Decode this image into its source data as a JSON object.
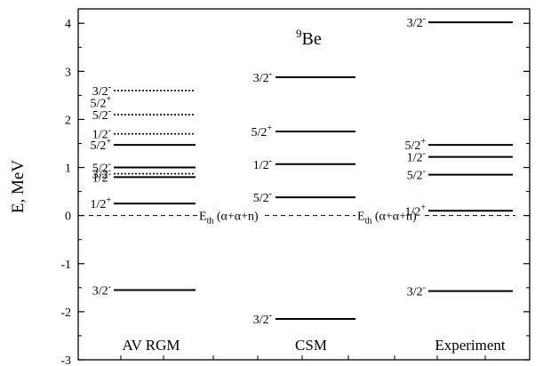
{
  "chart_data": {
    "type": "level_diagram",
    "nucleus": {
      "mass": "9",
      "symbol": "Be"
    },
    "ylabel": "E, MeV",
    "ylim": [
      -3,
      4.3
    ],
    "yticks": [
      -3,
      -2,
      -1,
      0,
      1,
      2,
      3,
      4
    ],
    "threshold": {
      "energy": 0.0,
      "label_main": "E",
      "label_sub": "th",
      "label_rest": " (α+α+n)"
    },
    "columns": [
      {
        "name": "AV RGM",
        "levels": [
          {
            "energy": 2.6,
            "label": "3/2",
            "parity": "-",
            "style": "dotted"
          },
          {
            "energy": 2.1,
            "label": "5/2",
            "parity": "-",
            "style": "dotted"
          },
          {
            "energy": 1.7,
            "label": "1/2",
            "parity": "-",
            "style": "dotted"
          },
          {
            "energy": 1.47,
            "label": "5/2",
            "parity": "+",
            "style": "solid"
          },
          {
            "energy": 1.0,
            "label": "5/2",
            "parity": "-",
            "style": "solid"
          },
          {
            "energy": 0.87,
            "label": "3/2",
            "parity": "-",
            "style": "dotted"
          },
          {
            "energy": 0.8,
            "label": "1/2",
            "parity": "-",
            "style": "solid"
          },
          {
            "energy": 0.25,
            "label": "1/2",
            "parity": "+",
            "style": "solid"
          },
          {
            "energy": -1.55,
            "label": "3/2",
            "parity": "-",
            "style": "solid"
          }
        ],
        "extra_labels": [
          {
            "energy": 2.35,
            "label": "5/2",
            "parity": "+"
          }
        ]
      },
      {
        "name": "CSM",
        "levels": [
          {
            "energy": 2.88,
            "label": "3/2",
            "parity": "-",
            "style": "solid"
          },
          {
            "energy": 1.75,
            "label": "5/2",
            "parity": "+",
            "style": "solid"
          },
          {
            "energy": 1.07,
            "label": "1/2",
            "parity": "-",
            "style": "solid"
          },
          {
            "energy": 0.38,
            "label": "5/2",
            "parity": "-",
            "style": "solid"
          },
          {
            "energy": -2.15,
            "label": "3/2",
            "parity": "-",
            "style": "solid"
          }
        ],
        "extra_labels": []
      },
      {
        "name": "Experiment",
        "levels": [
          {
            "energy": 4.02,
            "label": "3/2",
            "parity": "-",
            "style": "solid"
          },
          {
            "energy": 1.47,
            "label": "5/2",
            "parity": "+",
            "style": "solid"
          },
          {
            "energy": 1.22,
            "label": "1/2",
            "parity": "-",
            "style": "solid"
          },
          {
            "energy": 0.85,
            "label": "5/2",
            "parity": "-",
            "style": "solid"
          },
          {
            "energy": 0.1,
            "label": "1/2",
            "parity": "+",
            "style": "solid"
          },
          {
            "energy": -1.57,
            "label": "3/2",
            "parity": "-",
            "style": "solid"
          }
        ],
        "extra_labels": []
      }
    ]
  }
}
